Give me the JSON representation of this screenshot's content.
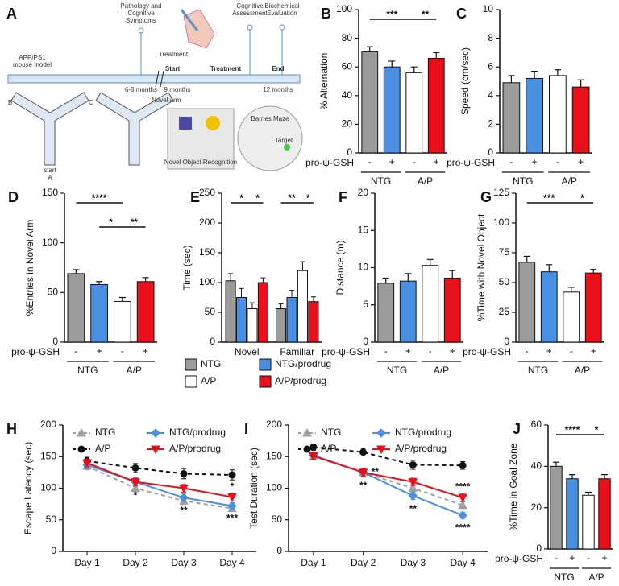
{
  "diagram": {
    "panel": "A",
    "pathology": [
      "Pathology and",
      "Cognitive",
      "Symptoms"
    ],
    "treatment_icon": "Treatment",
    "cognitive": [
      "Cognitive",
      "Assessment"
    ],
    "biochemical": [
      "Biochemical",
      "Evaluation"
    ],
    "model": [
      "APP/PS1",
      "mouse model"
    ],
    "age1": "6-8 months",
    "start": "Start",
    "age2": "9 months",
    "treatment": "Treatment",
    "end": "End",
    "age3": "12 months",
    "arm_b": "B",
    "arm_c": "C",
    "start_arm": "start",
    "arm_a": "A",
    "novel_arm": "Novel arm",
    "nor": "Novel Object Recognition",
    "barnes": "Barnes Maze",
    "target": "Target"
  },
  "chart_data": [
    {
      "type": "bar",
      "panel": "B",
      "ylabel": "% Alternation",
      "categories": [
        "-",
        "+",
        "-",
        "+"
      ],
      "groups": [
        "NTG",
        "A/P"
      ],
      "treatment_label": "pro-ψ-GSH",
      "values": [
        71,
        60,
        56,
        66
      ],
      "errors": [
        3,
        4,
        4,
        4
      ],
      "colors": [
        "#9b9b9b",
        "#4a90e2",
        "#ffffff",
        "#e8101a"
      ],
      "ylim": [
        0,
        100
      ],
      "yticks": [
        0,
        20,
        40,
        60,
        80,
        100
      ],
      "significance": [
        {
          "from": 0,
          "to": 2,
          "label": "***"
        },
        {
          "from": 2,
          "to": 3,
          "label": "**"
        }
      ]
    },
    {
      "type": "bar",
      "panel": "C",
      "ylabel": "Speed (cm/sec)",
      "categories": [
        "-",
        "+",
        "-",
        "+"
      ],
      "groups": [
        "NTG",
        "A/P"
      ],
      "treatment_label": "pro-ψ-GSH",
      "values": [
        4.9,
        5.2,
        5.4,
        4.6
      ],
      "errors": [
        0.5,
        0.5,
        0.4,
        0.5
      ],
      "colors": [
        "#9b9b9b",
        "#4a90e2",
        "#ffffff",
        "#e8101a"
      ],
      "ylim": [
        0,
        10
      ],
      "yticks": [
        0,
        2,
        4,
        6,
        8,
        10
      ],
      "significance": []
    },
    {
      "type": "bar",
      "panel": "D",
      "ylabel": "%Entries in Novel Arm",
      "categories": [
        "-",
        "+",
        "-",
        "+"
      ],
      "groups": [
        "NTG",
        "A/P"
      ],
      "treatment_label": "pro-ψ-GSH",
      "values": [
        69,
        58,
        41,
        61
      ],
      "errors": [
        4,
        3,
        4,
        4
      ],
      "colors": [
        "#9b9b9b",
        "#4a90e2",
        "#ffffff",
        "#e8101a"
      ],
      "ylim": [
        0,
        150
      ],
      "yticks": [
        0,
        50,
        100,
        150
      ],
      "significance": [
        {
          "from": 0,
          "to": 2,
          "label": "****"
        },
        {
          "from": 1,
          "to": 2,
          "label": "*"
        },
        {
          "from": 2,
          "to": 3,
          "label": "**"
        }
      ]
    },
    {
      "type": "grouped_bar",
      "panel": "E",
      "ylabel": "Time (sec)",
      "categories": [
        "Novel",
        "Familiar"
      ],
      "series": [
        {
          "name": "NTG",
          "color": "#9b9b9b",
          "values": [
            103,
            56
          ],
          "errors": [
            12,
            8
          ]
        },
        {
          "name": "NTG/prodrug",
          "color": "#4a90e2",
          "values": [
            75,
            75
          ],
          "errors": [
            15,
            12
          ]
        },
        {
          "name": "A/P",
          "color": "#ffffff",
          "values": [
            56,
            120
          ],
          "errors": [
            10,
            15
          ]
        },
        {
          "name": "A/P/prodrug",
          "color": "#e8101a",
          "values": [
            100,
            68
          ],
          "errors": [
            8,
            8
          ]
        }
      ],
      "ylim": [
        0,
        250
      ],
      "yticks": [
        0,
        50,
        100,
        150,
        200,
        250
      ],
      "legend": "bottom",
      "significance": [
        {
          "category": 0,
          "from": 0,
          "to": 2,
          "label": "*"
        },
        {
          "category": 0,
          "from": 2,
          "to": 3,
          "label": "*"
        },
        {
          "category": 1,
          "from": 0,
          "to": 2,
          "label": "**"
        },
        {
          "category": 1,
          "from": 2,
          "to": 3,
          "label": "*"
        }
      ]
    },
    {
      "type": "bar",
      "panel": "F",
      "ylabel": "Distance (m)",
      "categories": [
        "-",
        "+",
        "-",
        "+"
      ],
      "groups": [
        "NTG",
        "A/P"
      ],
      "treatment_label": "pro-ψ-GSH",
      "values": [
        7.9,
        8.2,
        10.3,
        8.6
      ],
      "errors": [
        0.7,
        1,
        0.8,
        1
      ],
      "colors": [
        "#9b9b9b",
        "#4a90e2",
        "#ffffff",
        "#e8101a"
      ],
      "ylim": [
        0,
        20
      ],
      "yticks": [
        0,
        5,
        10,
        15,
        20
      ],
      "significance": []
    },
    {
      "type": "bar",
      "panel": "G",
      "ylabel": "%Time with Novel Object",
      "categories": [
        "-",
        "+",
        "-",
        "+"
      ],
      "groups": [
        "NTG",
        "A/P"
      ],
      "treatment_label": "pro-ψ-GSH",
      "values": [
        67,
        59,
        42,
        58
      ],
      "errors": [
        5,
        6,
        4,
        3
      ],
      "colors": [
        "#9b9b9b",
        "#4a90e2",
        "#ffffff",
        "#e8101a"
      ],
      "ylim": [
        0,
        125
      ],
      "yticks": [
        0,
        25,
        50,
        75,
        100,
        125
      ],
      "significance": [
        {
          "from": 0,
          "to": 2,
          "label": "***"
        },
        {
          "from": 2,
          "to": 3,
          "label": "*"
        }
      ]
    },
    {
      "type": "line",
      "panel": "H",
      "ylabel": "Escape Latency (sec)",
      "categories": [
        "Day 1",
        "Day 2",
        "Day 3",
        "Day 4"
      ],
      "series": [
        {
          "name": "NTG",
          "color": "#a0a0a0",
          "dash": true,
          "marker": "triangle",
          "values": [
            135,
            100,
            80,
            68
          ],
          "errors": [
            6,
            6,
            6,
            5
          ]
        },
        {
          "name": "A/P",
          "color": "#111111",
          "dash": true,
          "marker": "circle",
          "values": [
            143,
            132,
            123,
            121
          ],
          "errors": [
            6,
            7,
            8,
            8
          ]
        },
        {
          "name": "NTG/prodrug",
          "color": "#4a90e2",
          "dash": false,
          "marker": "diamond",
          "values": [
            137,
            110,
            85,
            72
          ],
          "errors": [
            6,
            7,
            6,
            5
          ]
        },
        {
          "name": "A/P/prodrug",
          "color": "#e8101a",
          "dash": false,
          "marker": "triangle-down",
          "values": [
            140,
            110,
            100,
            86
          ],
          "errors": [
            6,
            6,
            6,
            6
          ]
        }
      ],
      "ylim": [
        0,
        200
      ],
      "yticks": [
        0,
        50,
        100,
        150,
        200
      ],
      "legend": "top",
      "annotations": [
        {
          "series": 2,
          "x": 1,
          "label": "*",
          "position": "below"
        },
        {
          "series": 2,
          "x": 2,
          "label": "**",
          "position": "below"
        },
        {
          "series": 2,
          "x": 3,
          "label": "***",
          "position": "below"
        },
        {
          "series": 3,
          "x": 3,
          "label": "*",
          "position": "above"
        }
      ]
    },
    {
      "type": "line",
      "panel": "I",
      "ylabel": "Test Duration (sec)",
      "categories": [
        "Day 1",
        "Day 2",
        "Day 3",
        "Day 4"
      ],
      "series": [
        {
          "name": "NTG",
          "color": "#a0a0a0",
          "dash": true,
          "marker": "triangle",
          "values": [
            150,
            125,
            100,
            73
          ],
          "errors": [
            5,
            6,
            6,
            5
          ]
        },
        {
          "name": "A/P",
          "color": "#111111",
          "dash": true,
          "marker": "circle",
          "values": [
            165,
            157,
            137,
            136
          ],
          "errors": [
            5,
            6,
            7,
            6
          ]
        },
        {
          "name": "NTG/prodrug",
          "color": "#4a90e2",
          "dash": false,
          "marker": "diamond",
          "values": [
            152,
            125,
            88,
            57
          ],
          "errors": [
            5,
            6,
            6,
            5
          ]
        },
        {
          "name": "A/P/prodrug",
          "color": "#e8101a",
          "dash": false,
          "marker": "triangle-down",
          "values": [
            151,
            125,
            110,
            85
          ],
          "errors": [
            5,
            6,
            6,
            6
          ]
        }
      ],
      "ylim": [
        0,
        200
      ],
      "yticks": [
        0,
        50,
        100,
        150,
        200
      ],
      "legend": "top",
      "annotations": [
        {
          "series": 3,
          "x": 1,
          "label": "**",
          "position": "right"
        },
        {
          "series": 2,
          "x": 1,
          "label": "**",
          "position": "below"
        },
        {
          "series": 2,
          "x": 2,
          "label": "**",
          "position": "below"
        },
        {
          "series": 3,
          "x": 3,
          "label": "****",
          "position": "above"
        },
        {
          "series": 2,
          "x": 3,
          "label": "****",
          "position": "below"
        }
      ]
    },
    {
      "type": "bar",
      "panel": "J",
      "ylabel": "%Time in Goal Zone",
      "categories": [
        "-",
        "+",
        "-",
        "+"
      ],
      "groups": [
        "NTG",
        "A/P"
      ],
      "treatment_label": "pro-ψ-GSH",
      "values": [
        40,
        34,
        26,
        34
      ],
      "errors": [
        2,
        2,
        1.5,
        2
      ],
      "colors": [
        "#9b9b9b",
        "#4a90e2",
        "#ffffff",
        "#e8101a"
      ],
      "ylim": [
        0,
        60
      ],
      "yticks": [
        0,
        20,
        40,
        60
      ],
      "significance": [
        {
          "from": 0,
          "to": 2,
          "label": "****"
        },
        {
          "from": 2,
          "to": 3,
          "label": "*"
        }
      ]
    }
  ]
}
